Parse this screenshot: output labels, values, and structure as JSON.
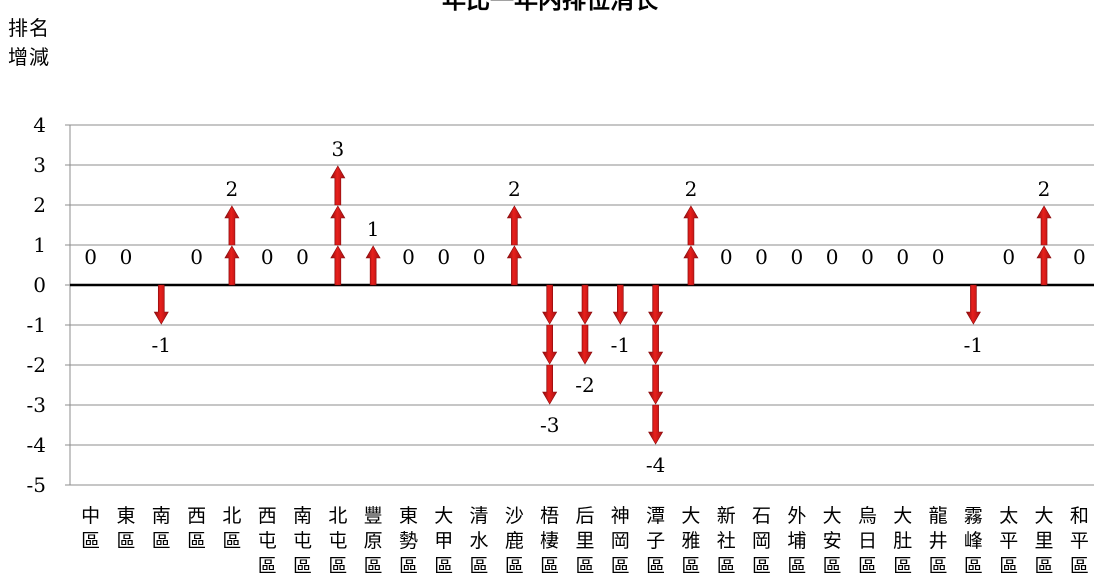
{
  "chart_data": {
    "type": "bar",
    "title": "年比一年内排位消长",
    "ylabel": "排名增減",
    "ylim": [
      -5,
      4
    ],
    "yticks": [
      4,
      3,
      2,
      1,
      0,
      -1,
      -2,
      -3,
      -4,
      -5
    ],
    "grid": true,
    "categories": [
      "中區",
      "東區",
      "南區",
      "西區",
      "北區",
      "西屯區",
      "南屯區",
      "北屯區",
      "豐原區",
      "東勢區",
      "大甲區",
      "清水區",
      "沙鹿區",
      "梧棲區",
      "后里區",
      "神岡區",
      "潭子區",
      "大雅區",
      "新社區",
      "石岡區",
      "外埔區",
      "大安區",
      "烏日區",
      "大肚區",
      "龍井區",
      "霧峰區",
      "太平區",
      "大里區",
      "和平區"
    ],
    "values": [
      0,
      0,
      -1,
      0,
      2,
      0,
      0,
      3,
      1,
      0,
      0,
      0,
      2,
      -3,
      -2,
      -1,
      -4,
      2,
      0,
      0,
      0,
      0,
      0,
      0,
      0,
      -1,
      0,
      2,
      0
    ],
    "up_color": "#e8201c",
    "down_color": "#d0161a"
  }
}
